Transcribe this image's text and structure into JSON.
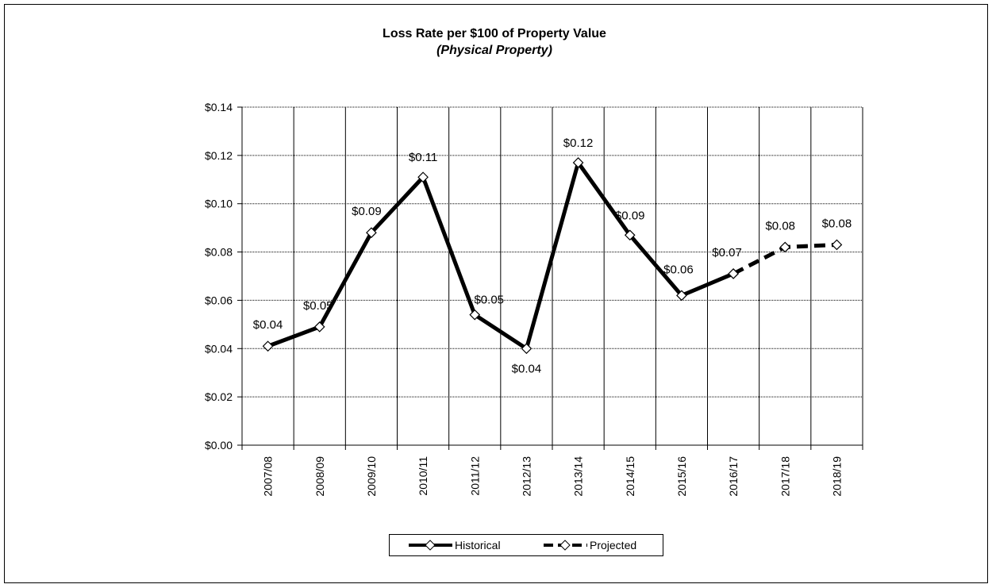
{
  "chart_data": {
    "type": "line",
    "title": "Loss Rate per $100 of Property Value",
    "subtitle": "(Physical Property)",
    "categories": [
      "2007/08",
      "2008/09",
      "2009/10",
      "2010/11",
      "2011/12",
      "2012/13",
      "2013/14",
      "2014/15",
      "2015/16",
      "2016/17",
      "2017/18",
      "2018/19"
    ],
    "series": [
      {
        "name": "Historical",
        "color": "#000000",
        "dashed": false,
        "values": [
          0.041,
          0.049,
          0.088,
          0.111,
          0.054,
          0.04,
          0.117,
          0.087,
          0.062,
          0.071,
          null,
          null
        ],
        "value_labels": [
          "$0.04",
          "$0.05",
          "$0.09",
          "$0.11",
          "$0.05",
          "$0.04",
          "$0.12",
          "$0.09",
          "$0.06",
          "$0.07",
          null,
          null
        ]
      },
      {
        "name": "Projected",
        "color": "#000000",
        "dashed": true,
        "values": [
          null,
          null,
          null,
          null,
          null,
          null,
          null,
          null,
          null,
          0.071,
          0.082,
          0.083
        ],
        "value_labels": [
          null,
          null,
          null,
          null,
          null,
          null,
          null,
          null,
          null,
          null,
          "$0.08",
          "$0.08"
        ]
      }
    ],
    "ylim": [
      0,
      0.14
    ],
    "yticks": [
      {
        "value": 0,
        "label": "$0.00"
      },
      {
        "value": 0.02,
        "label": "$0.02"
      },
      {
        "value": 0.04,
        "label": "$0.04"
      },
      {
        "value": 0.06,
        "label": "$0.06"
      },
      {
        "value": 0.08,
        "label": "$0.08"
      },
      {
        "value": 0.1,
        "label": "$0.10"
      },
      {
        "value": 0.12,
        "label": "$0.12"
      },
      {
        "value": 0.14,
        "label": "$0.14"
      }
    ],
    "grid": true,
    "legend": "bottom"
  }
}
